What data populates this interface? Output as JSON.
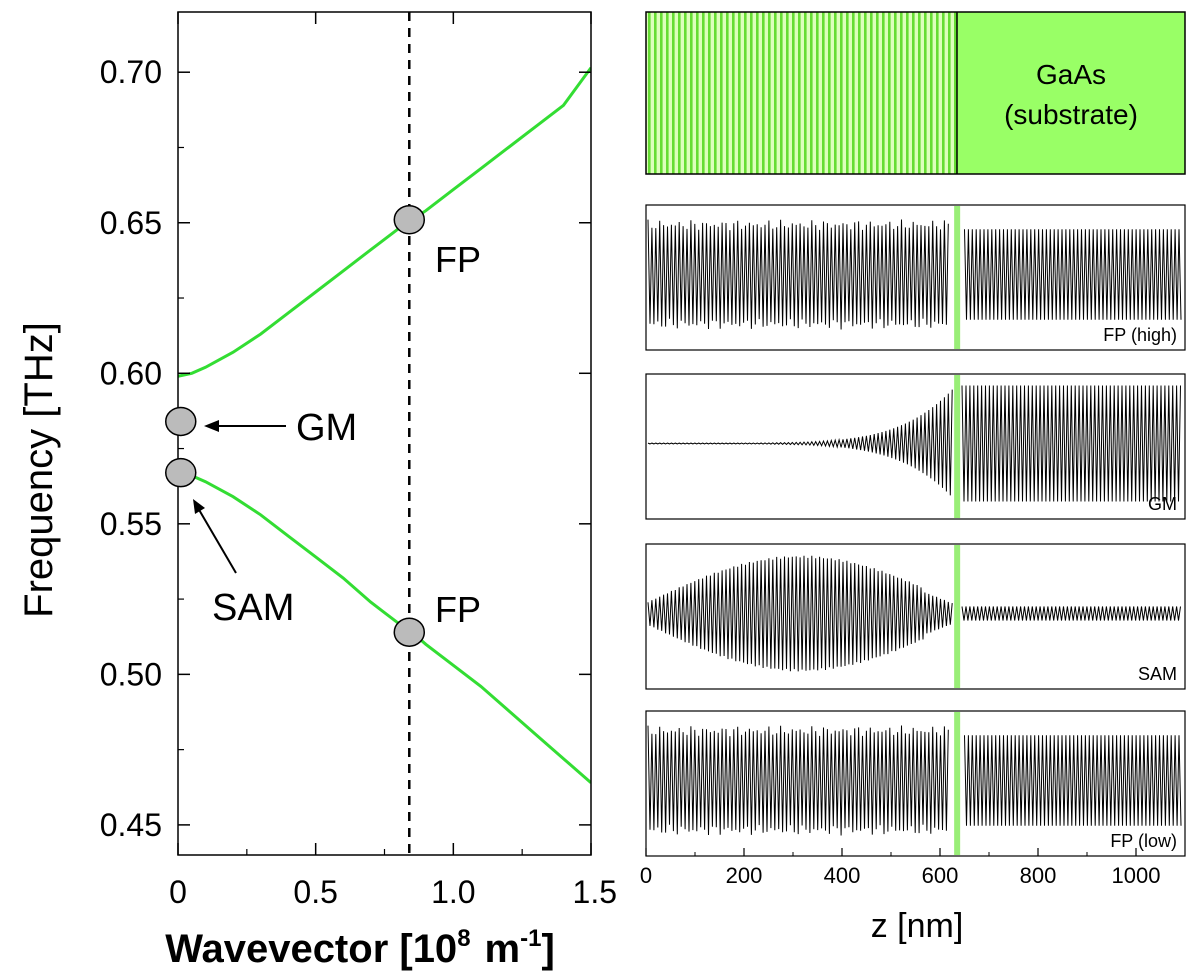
{
  "colors": {
    "dispersion": "#33dd33",
    "substrate_fill": "#99ff66",
    "stripe": "#66dd33",
    "interface": "#99ee77",
    "marker_fill": "#bbbbbb",
    "axis": "#000000"
  },
  "chart_data": [
    {
      "type": "line",
      "title": "",
      "xlabel": "Wavevector [10",
      "xlabel_exp": "8",
      "xlabel_unit": "m",
      "xlabel_unit_exp": "-1",
      "xlabel_close": "]",
      "ylabel": "Frequency [THz]",
      "xlim": [
        0,
        1.5
      ],
      "ylim": [
        0.44,
        0.72
      ],
      "xticks": [
        0,
        0.5,
        1.0,
        1.5
      ],
      "xtick_labels": [
        "0",
        "0.5",
        "1.0",
        "1.5"
      ],
      "yticks": [
        0.45,
        0.5,
        0.55,
        0.6,
        0.65,
        0.7
      ],
      "ytick_labels": [
        "0.45",
        "0.50",
        "0.55",
        "0.60",
        "0.65",
        "0.70"
      ],
      "grid": false,
      "series": [
        {
          "key": "upper",
          "x": [
            0,
            0.05,
            0.1,
            0.2,
            0.3,
            0.4,
            0.5,
            0.6,
            0.7,
            0.8,
            0.85,
            0.9,
            1.0,
            1.1,
            1.2,
            1.3,
            1.4,
            1.5
          ],
          "y": [
            0.599,
            0.6,
            0.602,
            0.607,
            0.613,
            0.62,
            0.627,
            0.634,
            0.641,
            0.648,
            0.651,
            0.654,
            0.661,
            0.668,
            0.675,
            0.682,
            0.689,
            0.7015
          ]
        },
        {
          "key": "lower",
          "x": [
            0,
            0.05,
            0.1,
            0.2,
            0.3,
            0.4,
            0.5,
            0.6,
            0.7,
            0.8,
            0.85,
            0.9,
            1.0,
            1.1,
            1.2,
            1.3,
            1.4,
            1.5
          ],
          "y": [
            0.567,
            0.566,
            0.564,
            0.559,
            0.553,
            0.546,
            0.539,
            0.532,
            0.524,
            0.517,
            0.514,
            0.51,
            0.503,
            0.496,
            0.488,
            0.48,
            0.472,
            0.464
          ]
        }
      ],
      "vertical_line_x": 0.84,
      "markers": [
        {
          "key": "fp_high",
          "x": 0.84,
          "y": 0.651,
          "label": "FP"
        },
        {
          "key": "gm",
          "x": 0.01,
          "y": 0.584,
          "label": "GM"
        },
        {
          "key": "sam",
          "x": 0.01,
          "y": 0.567,
          "label": "SAM"
        },
        {
          "key": "fp_low",
          "x": 0.84,
          "y": 0.514,
          "label": "FP"
        }
      ]
    },
    {
      "type": "line",
      "title": "",
      "xlabel": "z [nm]",
      "xlim": [
        0,
        1100
      ],
      "xticks": [
        0,
        200,
        400,
        600,
        800,
        1000
      ],
      "xtick_labels": [
        "0",
        "200",
        "400",
        "600",
        "800",
        "1000"
      ],
      "interface_z": 635,
      "structure": {
        "substrate_label_line1": "GaAs",
        "substrate_label_line2": "(substrate)",
        "superlattice_range": [
          0,
          635
        ],
        "substrate_range": [
          635,
          1100
        ]
      },
      "panels": [
        {
          "key": "fp_high",
          "label": "FP (high)",
          "left_amplitude": [
            0.95,
            0.95
          ],
          "right_amplitude": 0.78,
          "left_end": 620,
          "right_start": 650
        },
        {
          "key": "gm",
          "label": "GM",
          "left_envelope": "growing",
          "left_amplitude": [
            0.0,
            0.95
          ],
          "right_amplitude": 1.0,
          "left_end": 628,
          "right_start": 645
        },
        {
          "key": "sam",
          "label": "SAM",
          "left_envelope": "bell",
          "left_amplitude": [
            0.2,
            1.0
          ],
          "right_amplitude": 0.12,
          "left_end": 628,
          "right_start": 645
        },
        {
          "key": "fp_low",
          "label": "FP (low)",
          "left_amplitude": [
            0.95,
            0.95
          ],
          "right_amplitude": 0.78,
          "left_end": 620,
          "right_start": 650
        }
      ]
    }
  ]
}
